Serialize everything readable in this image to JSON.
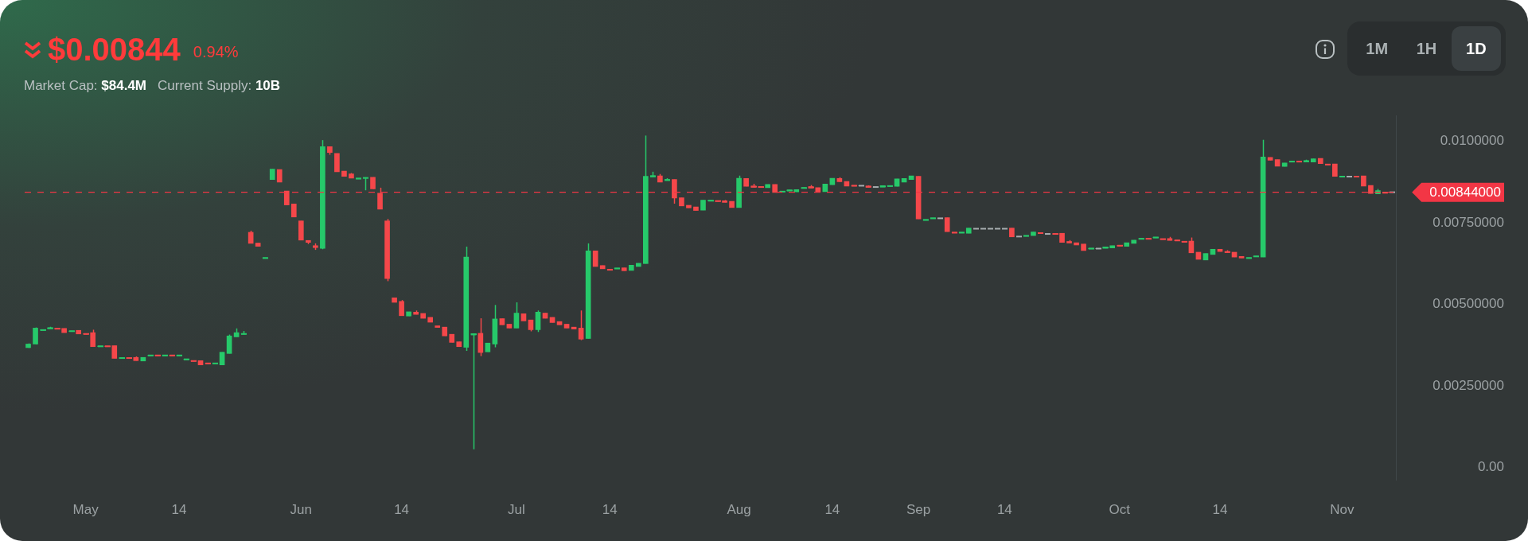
{
  "chart_data": {
    "type": "candlestick",
    "title": "$0.00844",
    "annotations": [
      "0.94%",
      "Market Cap: $84.4M",
      "Current Supply: 10B",
      "1M",
      "1H",
      "1D"
    ],
    "categories": [
      null,
      null,
      null,
      null,
      null,
      null,
      null,
      null,
      "May",
      null,
      null,
      null,
      null,
      null,
      null,
      null,
      null,
      null,
      null,
      null,
      null,
      "14",
      null,
      null,
      null,
      null,
      null,
      null,
      null,
      null,
      null,
      null,
      null,
      null,
      null,
      null,
      null,
      null,
      "Jun",
      null,
      null,
      null,
      null,
      null,
      null,
      null,
      null,
      null,
      null,
      null,
      null,
      null,
      "14",
      null,
      null,
      null,
      null,
      null,
      null,
      null,
      null,
      null,
      null,
      null,
      null,
      null,
      null,
      null,
      "Jul",
      null,
      null,
      null,
      null,
      null,
      null,
      null,
      null,
      null,
      null,
      null,
      null,
      "14",
      null,
      null,
      null,
      null,
      null,
      null,
      null,
      null,
      null,
      null,
      null,
      null,
      null,
      null,
      null,
      null,
      null,
      "Aug",
      null,
      null,
      null,
      null,
      null,
      null,
      null,
      null,
      null,
      null,
      null,
      null,
      "14",
      null,
      null,
      null,
      null,
      null,
      null,
      null,
      null,
      null,
      null,
      null,
      "Sep",
      null,
      null,
      null,
      null,
      null,
      null,
      null,
      null,
      null,
      null,
      null,
      "14",
      null,
      null,
      null,
      null,
      null,
      null,
      null,
      null,
      null,
      null,
      null,
      null,
      null,
      null,
      null,
      "Oct",
      null,
      null,
      null,
      null,
      null,
      null,
      null,
      null,
      null,
      null,
      null,
      null,
      null,
      "14",
      null,
      null,
      null,
      null,
      null,
      null,
      null,
      null,
      null,
      null,
      null,
      null,
      null,
      null,
      null,
      null,
      "Nov",
      null,
      null,
      null,
      null,
      null,
      null,
      null
    ],
    "ohlc": [
      [
        0.00367,
        0.0038,
        0.00366,
        0.00378
      ],
      [
        0.00378,
        0.00429,
        0.00377,
        0.00427
      ],
      [
        0.0042,
        0.00422,
        0.0042,
        0.00422
      ],
      [
        0.00425,
        0.00431,
        0.00425,
        0.00428
      ],
      [
        0.00426,
        0.00426,
        0.00424,
        0.00424
      ],
      [
        0.00426,
        0.00426,
        0.00413,
        0.00413
      ],
      [
        0.00417,
        0.00418,
        0.00417,
        0.00418
      ],
      [
        0.0042,
        0.0042,
        0.00409,
        0.00409
      ],
      [
        0.0041,
        0.0041,
        0.00408,
        0.00408
      ],
      [
        0.00413,
        0.00422,
        0.0037,
        0.0037
      ],
      [
        0.0037,
        0.00372,
        0.0037,
        0.00372
      ],
      [
        0.00372,
        0.00372,
        0.0037,
        0.0037
      ],
      [
        0.00373,
        0.00373,
        0.00334,
        0.00334
      ],
      [
        0.00334,
        0.00336,
        0.00334,
        0.00336
      ],
      [
        0.00336,
        0.00336,
        0.00334,
        0.00334
      ],
      [
        0.00337,
        0.0034,
        0.00327,
        0.00327
      ],
      [
        0.00326,
        0.00337,
        0.00326,
        0.00337
      ],
      [
        0.00342,
        0.00344,
        0.00342,
        0.00344
      ],
      [
        0.00344,
        0.00344,
        0.00342,
        0.00342
      ],
      [
        0.00342,
        0.00344,
        0.00342,
        0.00344
      ],
      [
        0.00344,
        0.00344,
        0.00342,
        0.00342
      ],
      [
        0.00342,
        0.00344,
        0.00342,
        0.00344
      ],
      [
        0.0033,
        0.00332,
        0.0033,
        0.00332
      ],
      [
        0.00327,
        0.00327,
        0.00325,
        0.00325
      ],
      [
        0.00327,
        0.00327,
        0.00314,
        0.00314
      ],
      [
        0.00319,
        0.00319,
        0.00318,
        0.00318
      ],
      [
        0.00318,
        0.00319,
        0.00318,
        0.00319
      ],
      [
        0.00314,
        0.00353,
        0.00314,
        0.00353
      ],
      [
        0.00349,
        0.00407,
        0.00349,
        0.00403
      ],
      [
        0.004,
        0.00426,
        0.004,
        0.00413
      ],
      [
        0.00408,
        0.00418,
        0.00408,
        0.0041
      ],
      [
        0.00721,
        0.00726,
        0.00687,
        0.00687
      ],
      [
        0.00688,
        0.00688,
        0.00678,
        0.00678
      ],
      [
        0.00641,
        0.00643,
        0.00641,
        0.00643
      ],
      [
        0.00883,
        0.00915,
        0.00883,
        0.00915
      ],
      [
        0.00914,
        0.00914,
        0.00875,
        0.00875
      ],
      [
        0.00848,
        0.00848,
        0.00805,
        0.00805
      ],
      [
        0.00808,
        0.00808,
        0.00768,
        0.00768
      ],
      [
        0.00756,
        0.00756,
        0.00697,
        0.00697
      ],
      [
        0.00696,
        0.00696,
        0.00685,
        0.0069
      ],
      [
        0.0068,
        0.00687,
        0.00667,
        0.00674
      ],
      [
        0.00672,
        0.01004,
        0.00669,
        0.00984
      ],
      [
        0.00984,
        0.00984,
        0.00959,
        0.00966
      ],
      [
        0.00963,
        0.00963,
        0.00907,
        0.00907
      ],
      [
        0.00909,
        0.00909,
        0.00893,
        0.00893
      ],
      [
        0.009,
        0.00903,
        0.00887,
        0.00887
      ],
      [
        0.00885,
        0.00887,
        0.00885,
        0.00887
      ],
      [
        0.00887,
        0.0089,
        0.0085,
        0.00889
      ],
      [
        0.0089,
        0.0089,
        0.00854,
        0.00854
      ],
      [
        0.00841,
        0.00858,
        0.00792,
        0.00792
      ],
      [
        0.00756,
        0.00762,
        0.00571,
        0.00579
      ],
      [
        0.0052,
        0.0052,
        0.00506,
        0.00506
      ],
      [
        0.00509,
        0.00513,
        0.00465,
        0.00465
      ],
      [
        0.00464,
        0.00477,
        0.00464,
        0.00477
      ],
      [
        0.00476,
        0.00481,
        0.00469,
        0.00469
      ],
      [
        0.00472,
        0.00472,
        0.00457,
        0.00457
      ],
      [
        0.0046,
        0.0046,
        0.00445,
        0.00445
      ],
      [
        0.00434,
        0.00434,
        0.00429,
        0.00429
      ],
      [
        0.0043,
        0.0043,
        0.00403,
        0.00403
      ],
      [
        0.00408,
        0.00408,
        0.00383,
        0.00383
      ],
      [
        0.00385,
        0.00385,
        0.0037,
        0.0037
      ],
      [
        0.00368,
        0.00677,
        0.00357,
        0.00645
      ],
      [
        0.00406,
        0.00411,
        0.00055,
        0.0041
      ],
      [
        0.00411,
        0.00457,
        0.00341,
        0.00352
      ],
      [
        0.00354,
        0.00381,
        0.00354,
        0.00381
      ],
      [
        0.00378,
        0.00498,
        0.00368,
        0.00455
      ],
      [
        0.00456,
        0.00456,
        0.00437,
        0.00437
      ],
      [
        0.00439,
        0.00439,
        0.00427,
        0.00427
      ],
      [
        0.00427,
        0.00506,
        0.00427,
        0.00473
      ],
      [
        0.00471,
        0.00471,
        0.00449,
        0.00449
      ],
      [
        0.00452,
        0.00452,
        0.00417,
        0.00422
      ],
      [
        0.00422,
        0.00481,
        0.00415,
        0.00476
      ],
      [
        0.00473,
        0.00473,
        0.00457,
        0.00457
      ],
      [
        0.0046,
        0.0046,
        0.00444,
        0.00444
      ],
      [
        0.00447,
        0.00447,
        0.00437,
        0.00437
      ],
      [
        0.00439,
        0.00439,
        0.00427,
        0.00427
      ],
      [
        0.0043,
        0.0043,
        0.00424,
        0.00424
      ],
      [
        0.00427,
        0.00481,
        0.0039,
        0.00393
      ],
      [
        0.00395,
        0.00687,
        0.00395,
        0.00664
      ],
      [
        0.00664,
        0.00664,
        0.00616,
        0.00616
      ],
      [
        0.00619,
        0.00619,
        0.00609,
        0.00609
      ],
      [
        0.00607,
        0.00607,
        0.00605,
        0.00605
      ],
      [
        0.00609,
        0.00611,
        0.00609,
        0.00611
      ],
      [
        0.00612,
        0.00612,
        0.00603,
        0.00603
      ],
      [
        0.00604,
        0.0062,
        0.00604,
        0.0062
      ],
      [
        0.00616,
        0.00626,
        0.00616,
        0.00626
      ],
      [
        0.00625,
        0.01018,
        0.00625,
        0.00893
      ],
      [
        0.00891,
        0.00907,
        0.00891,
        0.00895
      ],
      [
        0.00894,
        0.009,
        0.00875,
        0.00875
      ],
      [
        0.0088,
        0.00887,
        0.0088,
        0.00883
      ],
      [
        0.00883,
        0.00883,
        0.00809,
        0.00826
      ],
      [
        0.00827,
        0.00827,
        0.00802,
        0.00802
      ],
      [
        0.00804,
        0.00804,
        0.00796,
        0.00796
      ],
      [
        0.00799,
        0.00799,
        0.00788,
        0.00788
      ],
      [
        0.00789,
        0.0082,
        0.00789,
        0.0082
      ],
      [
        0.00817,
        0.00819,
        0.00817,
        0.00819
      ],
      [
        0.00818,
        0.00818,
        0.00816,
        0.00816
      ],
      [
        0.00818,
        0.0082,
        0.00813,
        0.00813
      ],
      [
        0.00816,
        0.00816,
        0.00797,
        0.00797
      ],
      [
        0.00797,
        0.00895,
        0.00797,
        0.00887
      ],
      [
        0.00886,
        0.00886,
        0.00862,
        0.00862
      ],
      [
        0.00863,
        0.0087,
        0.00859,
        0.00859
      ],
      [
        0.00861,
        0.00861,
        0.00859,
        0.00859
      ],
      [
        0.00858,
        0.00868,
        0.00858,
        0.00868
      ],
      [
        0.00868,
        0.00868,
        0.00843,
        0.00843
      ],
      [
        0.00845,
        0.00847,
        0.00845,
        0.00847
      ],
      [
        0.00848,
        0.00851,
        0.00848,
        0.00851
      ],
      [
        0.00845,
        0.00852,
        0.00845,
        0.00852
      ],
      [
        0.00856,
        0.00858,
        0.00856,
        0.00858
      ],
      [
        0.00861,
        0.00866,
        0.00857,
        0.00857
      ],
      [
        0.00858,
        0.00858,
        0.00846,
        0.00846
      ],
      [
        0.00846,
        0.00869,
        0.00846,
        0.00869
      ],
      [
        0.00867,
        0.00887,
        0.00867,
        0.00887
      ],
      [
        0.00886,
        0.0089,
        0.00876,
        0.00876
      ],
      [
        0.00877,
        0.00877,
        0.00863,
        0.00863
      ],
      [
        0.00865,
        0.00865,
        0.00863,
        0.00863
      ],
      [
        0.00864,
        0.00864,
        0.00864,
        0.00864
      ],
      [
        0.00863,
        0.00865,
        0.00859,
        0.00859
      ],
      [
        0.0086,
        0.0086,
        0.0086,
        0.0086
      ],
      [
        0.0086,
        0.00864,
        0.0086,
        0.00864
      ],
      [
        0.00862,
        0.00864,
        0.00862,
        0.00864
      ],
      [
        0.00862,
        0.00885,
        0.00862,
        0.00885
      ],
      [
        0.00875,
        0.00886,
        0.00875,
        0.00886
      ],
      [
        0.00883,
        0.00894,
        0.00883,
        0.00894
      ],
      [
        0.00893,
        0.00893,
        0.00762,
        0.00762
      ],
      [
        0.00758,
        0.0076,
        0.00758,
        0.0076
      ],
      [
        0.00763,
        0.00765,
        0.00763,
        0.00765
      ],
      [
        0.00764,
        0.00764,
        0.00764,
        0.00764
      ],
      [
        0.00766,
        0.00766,
        0.00723,
        0.00723
      ],
      [
        0.00721,
        0.00721,
        0.00719,
        0.00719
      ],
      [
        0.00719,
        0.00721,
        0.00719,
        0.00721
      ],
      [
        0.00718,
        0.00734,
        0.00718,
        0.00734
      ],
      [
        0.00732,
        0.00732,
        0.00732,
        0.00732
      ],
      [
        0.00732,
        0.00732,
        0.00732,
        0.00732
      ],
      [
        0.00732,
        0.00732,
        0.00732,
        0.00732
      ],
      [
        0.00732,
        0.00732,
        0.00732,
        0.00732
      ],
      [
        0.00732,
        0.00732,
        0.00732,
        0.00732
      ],
      [
        0.00734,
        0.00734,
        0.00707,
        0.00707
      ],
      [
        0.00708,
        0.00708,
        0.00708,
        0.00708
      ],
      [
        0.00709,
        0.00711,
        0.00709,
        0.00711
      ],
      [
        0.00711,
        0.00722,
        0.00711,
        0.00722
      ],
      [
        0.0072,
        0.0072,
        0.00717,
        0.00717
      ],
      [
        0.00716,
        0.00716,
        0.00716,
        0.00716
      ],
      [
        0.00717,
        0.00717,
        0.00715,
        0.00715
      ],
      [
        0.00718,
        0.00718,
        0.0069,
        0.0069
      ],
      [
        0.00693,
        0.00697,
        0.00688,
        0.00688
      ],
      [
        0.00689,
        0.00689,
        0.00682,
        0.00682
      ],
      [
        0.00685,
        0.00685,
        0.00665,
        0.00665
      ],
      [
        0.0067,
        0.00672,
        0.0067,
        0.00672
      ],
      [
        0.00671,
        0.00671,
        0.00671,
        0.00671
      ],
      [
        0.00672,
        0.00676,
        0.00672,
        0.00676
      ],
      [
        0.00673,
        0.0068,
        0.00673,
        0.0068
      ],
      [
        0.00681,
        0.00681,
        0.00679,
        0.00679
      ],
      [
        0.00678,
        0.00689,
        0.00678,
        0.00689
      ],
      [
        0.00687,
        0.00697,
        0.00687,
        0.00697
      ],
      [
        0.007,
        0.00702,
        0.007,
        0.00702
      ],
      [
        0.00702,
        0.00702,
        0.007,
        0.007
      ],
      [
        0.00704,
        0.00706,
        0.00704,
        0.00706
      ],
      [
        0.00701,
        0.00701,
        0.00699,
        0.00699
      ],
      [
        0.00702,
        0.00707,
        0.00696,
        0.00696
      ],
      [
        0.00697,
        0.00697,
        0.00695,
        0.00695
      ],
      [
        0.00693,
        0.00693,
        0.00691,
        0.00691
      ],
      [
        0.00694,
        0.00705,
        0.00658,
        0.00658
      ],
      [
        0.0066,
        0.0066,
        0.00638,
        0.00638
      ],
      [
        0.00636,
        0.00656,
        0.00636,
        0.00656
      ],
      [
        0.00653,
        0.00669,
        0.00653,
        0.00669
      ],
      [
        0.00669,
        0.00669,
        0.00662,
        0.00662
      ],
      [
        0.00662,
        0.00666,
        0.00659,
        0.00659
      ],
      [
        0.0066,
        0.0066,
        0.00645,
        0.00645
      ],
      [
        0.00647,
        0.00647,
        0.00642,
        0.00642
      ],
      [
        0.00641,
        0.00643,
        0.00641,
        0.00643
      ],
      [
        0.00646,
        0.00648,
        0.00646,
        0.00648
      ],
      [
        0.00645,
        0.01005,
        0.00645,
        0.00952
      ],
      [
        0.00951,
        0.00951,
        0.00942,
        0.00942
      ],
      [
        0.00944,
        0.00944,
        0.00924,
        0.00924
      ],
      [
        0.00923,
        0.00934,
        0.00923,
        0.00934
      ],
      [
        0.00937,
        0.00939,
        0.00937,
        0.00939
      ],
      [
        0.00939,
        0.00939,
        0.00937,
        0.00937
      ],
      [
        0.00937,
        0.00944,
        0.00937,
        0.00941
      ],
      [
        0.00937,
        0.00947,
        0.00937,
        0.00947
      ],
      [
        0.00948,
        0.00948,
        0.00932,
        0.00932
      ],
      [
        0.0093,
        0.0093,
        0.00928,
        0.00928
      ],
      [
        0.00931,
        0.00931,
        0.00893,
        0.00893
      ],
      [
        0.00891,
        0.00893,
        0.00891,
        0.00893
      ],
      [
        0.00892,
        0.00892,
        0.00892,
        0.00892
      ],
      [
        0.00893,
        0.00893,
        0.00891,
        0.00891
      ],
      [
        0.00894,
        0.00894,
        0.00863,
        0.00863
      ],
      [
        0.00865,
        0.00865,
        0.0084,
        0.0084
      ],
      [
        0.00839,
        0.00854,
        0.00839,
        0.00849
      ],
      [
        0.00845,
        0.00845,
        0.00841,
        0.00841
      ],
      [
        0.00844,
        0.00844,
        0.00844,
        0.00844
      ]
    ],
    "ylim": [
      -0.0004,
      0.0108
    ],
    "yticks": [
      {
        "value": 0,
        "label": "0.00"
      },
      {
        "value": 0.0025,
        "label": "0.00250000"
      },
      {
        "value": 0.005,
        "label": "0.00500000"
      },
      {
        "value": 0.0075,
        "label": "0.00750000"
      },
      {
        "value": 0.01,
        "label": "0.0100000"
      }
    ],
    "ref_lines": [
      {
        "axis": "y",
        "value": 0.00844,
        "label": "0.00844000",
        "color": "#f23645",
        "line_style": "dashed"
      }
    ],
    "grid": false,
    "legend": false
  }
}
